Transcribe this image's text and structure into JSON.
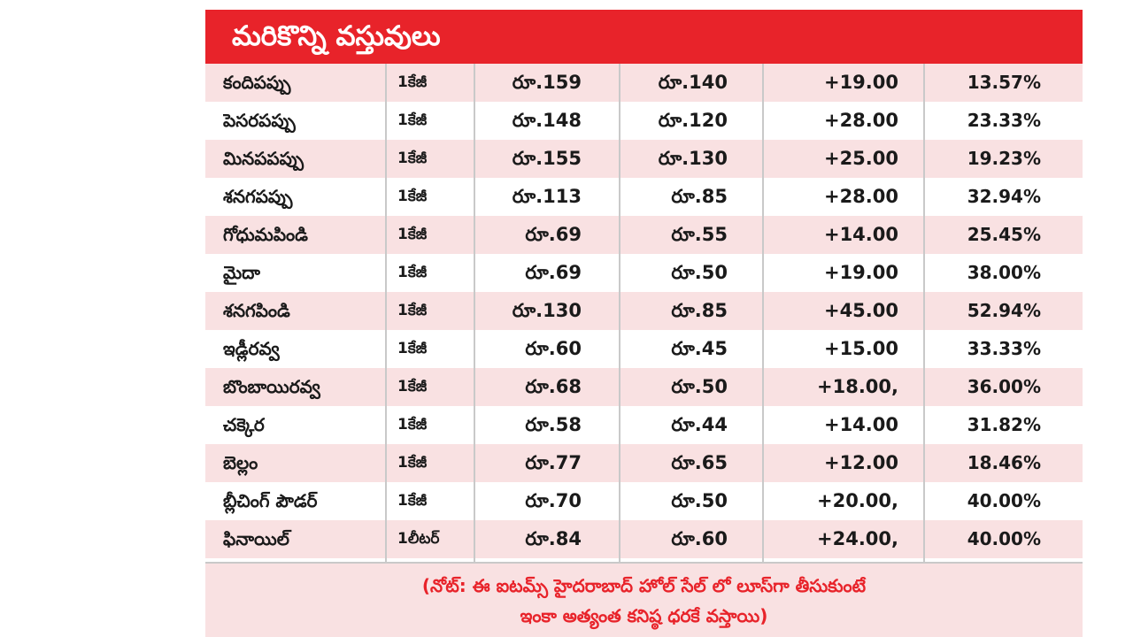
{
  "header": {
    "title": "మరికొన్ని వస్తువులు",
    "background_color": "#e8232a"
  },
  "rows": [
    {
      "name": "కందిపప్పు",
      "unit": "1కేజీ",
      "old_price": "రూ.159",
      "new_price": "రూ.140",
      "difference": "+19.00",
      "percent": "13.57%"
    },
    {
      "name": "పెసరపప్పు",
      "unit": "1కేజీ",
      "old_price": "రూ.148",
      "new_price": "రూ.120",
      "difference": "+28.00",
      "percent": "23.33%"
    },
    {
      "name": "మినపపప్పు",
      "unit": "1కేజీ",
      "old_price": "రూ.155",
      "new_price": "రూ.130",
      "difference": "+25.00",
      "percent": "19.23%"
    },
    {
      "name": "శనగపప్పు",
      "unit": "1కేజీ",
      "old_price": "రూ.113",
      "new_price": "రూ.85",
      "difference": "+28.00",
      "percent": "32.94%"
    },
    {
      "name": "గోధుమపిండి",
      "unit": "1కేజీ",
      "old_price": "రూ.69",
      "new_price": "రూ.55",
      "difference": "+14.00",
      "percent": "25.45%"
    },
    {
      "name": "మైదా",
      "unit": "1కేజీ",
      "old_price": "రూ.69",
      "new_price": "రూ.50",
      "difference": "+19.00",
      "percent": "38.00%"
    },
    {
      "name": "శనగపిండి",
      "unit": "1కేజీ",
      "old_price": "రూ.130",
      "new_price": "రూ.85",
      "difference": "+45.00",
      "percent": "52.94%"
    },
    {
      "name": "ఇడ్లీరవ్వ",
      "unit": "1కేజీ",
      "old_price": "రూ.60",
      "new_price": "రూ.45",
      "difference": "+15.00",
      "percent": "33.33%"
    },
    {
      "name": "బొంబాయిరవ్వ",
      "unit": "1కేజీ",
      "old_price": "రూ.68",
      "new_price": "రూ.50",
      "difference": "+18.00,",
      "percent": "36.00%"
    },
    {
      "name": "చక్కెర",
      "unit": "1కేజీ",
      "old_price": "రూ.58",
      "new_price": "రూ.44",
      "difference": "+14.00",
      "percent": "31.82%"
    },
    {
      "name": "బెల్లం",
      "unit": "1కేజీ",
      "old_price": "రూ.77",
      "new_price": "రూ.65",
      "difference": "+12.00",
      "percent": "18.46%"
    },
    {
      "name": "బ్లీచింగ్ పౌడర్",
      "unit": "1కేజీ",
      "old_price": "రూ.70",
      "new_price": "రూ.50",
      "difference": "+20.00,",
      "percent": "40.00%"
    },
    {
      "name": "ఫినాయిల్",
      "unit": "1లీటర్",
      "old_price": "రూ.84",
      "new_price": "రూ.60",
      "difference": "+24.00,",
      "percent": "40.00%"
    }
  ],
  "note": {
    "line1": "(నోట్: ఈ ఐటమ్స్ హైదరాబాద్ హోల్ సేల్ లో లూస్‌గా తీసుకుంటే",
    "line2": "ఇంకా అత్యంత కనిష్ఠ ధరకే వస్తాయి)",
    "text_color": "#e8232a"
  },
  "colors": {
    "row_tint": "#f9e1e2",
    "grid": "#c9c9c9",
    "text": "#1a1a1a"
  }
}
